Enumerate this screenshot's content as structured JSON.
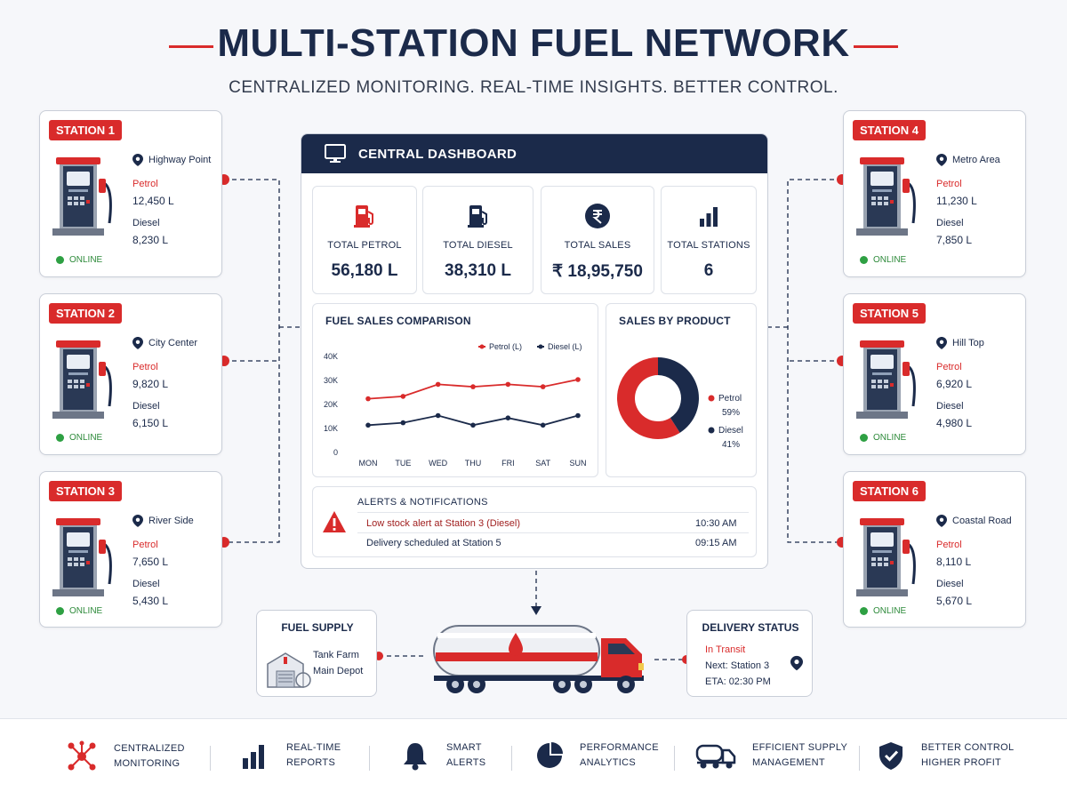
{
  "header": {
    "title": "MULTI-STATION FUEL NETWORK",
    "subtitle": "CENTRALIZED MONITORING. REAL-TIME INSIGHTS. BETTER CONTROL."
  },
  "colors": {
    "navy": "#1b2a4a",
    "red": "#d92b2b",
    "green": "#2ea043"
  },
  "labels": {
    "petrol": "Petrol",
    "diesel": "Diesel"
  },
  "stations": [
    {
      "badge": "STATION 1",
      "location": "Highway Point",
      "petrol": "12,450 L",
      "diesel": "8,230 L",
      "status": "ONLINE"
    },
    {
      "badge": "STATION 2",
      "location": "City Center",
      "petrol": "9,820 L",
      "diesel": "6,150 L",
      "status": "ONLINE"
    },
    {
      "badge": "STATION 3",
      "location": "River Side",
      "petrol": "7,650 L",
      "diesel": "5,430 L",
      "status": "ONLINE"
    },
    {
      "badge": "STATION 4",
      "location": "Metro Area",
      "petrol": "11,230 L",
      "diesel": "7,850 L",
      "status": "ONLINE"
    },
    {
      "badge": "STATION 5",
      "location": "Hill Top",
      "petrol": "6,920 L",
      "diesel": "4,980 L",
      "status": "ONLINE"
    },
    {
      "badge": "STATION 6",
      "location": "Coastal Road",
      "petrol": "8,110 L",
      "diesel": "5,670 L",
      "status": "ONLINE"
    }
  ],
  "dashboard": {
    "title": "CENTRAL DASHBOARD",
    "kpis": [
      {
        "label": "TOTAL PETROL",
        "value": "56,180 L",
        "icon": "fuel-pump-icon"
      },
      {
        "label": "TOTAL DIESEL",
        "value": "38,310 L",
        "icon": "fuel-pump-icon"
      },
      {
        "label": "TOTAL SALES",
        "value": "₹ 18,95,750",
        "icon": "rupee-icon"
      },
      {
        "label": "TOTAL STATIONS",
        "value": "6",
        "icon": "bar-chart-icon"
      }
    ],
    "alerts": {
      "title": "ALERTS & NOTIFICATIONS",
      "items": [
        {
          "text": "Low stock alert at Station 3 (Diesel)",
          "time": "10:30 AM"
        },
        {
          "text": "Delivery scheduled at Station 5",
          "time": "09:15 AM"
        }
      ]
    }
  },
  "chart_data": [
    {
      "type": "line",
      "title": "FUEL SALES COMPARISON",
      "categories": [
        "MON",
        "TUE",
        "WED",
        "THU",
        "FRI",
        "SAT",
        "SUN"
      ],
      "series": [
        {
          "name": "Petrol (L)",
          "color": "#d92b2b",
          "values": [
            22000,
            23000,
            28000,
            27000,
            28000,
            27000,
            30000
          ]
        },
        {
          "name": "Diesel (L)",
          "color": "#1b2a4a",
          "values": [
            11000,
            12000,
            15000,
            11000,
            14000,
            11000,
            15000
          ]
        }
      ],
      "y_ticks": [
        "0",
        "10K",
        "20K",
        "30K",
        "40K"
      ],
      "ylim": [
        0,
        40000
      ],
      "legend": "top-right",
      "grid": false
    },
    {
      "type": "pie",
      "title": "SALES BY PRODUCT",
      "labels": [
        "Petrol",
        "Diesel"
      ],
      "values": [
        59,
        41
      ],
      "display_values": [
        "59%",
        "41%"
      ],
      "colors": [
        "#d92b2b",
        "#1b2a4a"
      ],
      "legend": "right"
    }
  ],
  "supply": {
    "title": "FUEL SUPPLY",
    "line1": "Tank Farm",
    "line2": "Main Depot"
  },
  "delivery": {
    "title": "DELIVERY STATUS",
    "status": "In Transit",
    "next": "Next: Station 3",
    "eta": "ETA: 02:30 PM"
  },
  "features": [
    {
      "line1": "CENTRALIZED",
      "line2": "MONITORING",
      "icon": "network-icon"
    },
    {
      "line1": "REAL-TIME",
      "line2": "REPORTS",
      "icon": "bar-chart-icon"
    },
    {
      "line1": "SMART",
      "line2": "ALERTS",
      "icon": "bell-icon"
    },
    {
      "line1": "PERFORMANCE",
      "line2": "ANALYTICS",
      "icon": "pie-chart-icon"
    },
    {
      "line1": "EFFICIENT SUPPLY",
      "line2": "MANAGEMENT",
      "icon": "truck-icon"
    },
    {
      "line1": "BETTER CONTROL",
      "line2": "HIGHER PROFIT",
      "icon": "shield-check-icon"
    }
  ]
}
